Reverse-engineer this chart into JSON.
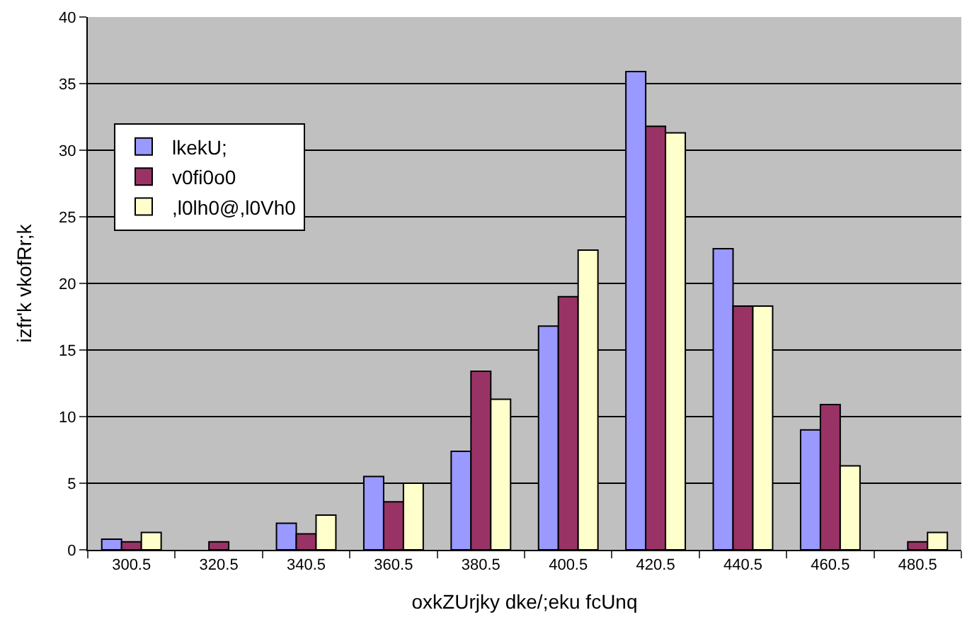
{
  "chart_data": {
    "type": "bar",
    "xlabel": "oxkZUrjky dke/;eku fcUnq",
    "ylabel": "izfr'k vkofRr;k",
    "categories": [
      "300.5",
      "320.5",
      "340.5",
      "360.5",
      "380.5",
      "400.5",
      "420.5",
      "440.5",
      "460.5",
      "480.5"
    ],
    "series": [
      {
        "name": "lkekU;",
        "color": "#9999ff",
        "values": [
          0.8,
          null,
          2.0,
          5.5,
          7.4,
          16.8,
          35.9,
          22.6,
          9.0,
          null
        ]
      },
      {
        "name": "v0fi0o0",
        "color": "#993366",
        "values": [
          0.6,
          0.6,
          1.2,
          3.6,
          13.4,
          19.0,
          31.8,
          18.3,
          10.9,
          0.6
        ]
      },
      {
        "name": ",l0lh0@,l0Vh0",
        "color": "#ffffcc",
        "values": [
          1.3,
          null,
          2.6,
          5.0,
          11.3,
          22.5,
          31.3,
          18.3,
          6.3,
          1.3
        ]
      }
    ],
    "ylim": [
      0,
      40
    ],
    "yticks": [
      0,
      5,
      10,
      15,
      20,
      25,
      30,
      35,
      40
    ],
    "grid": "y",
    "legend": "left"
  }
}
